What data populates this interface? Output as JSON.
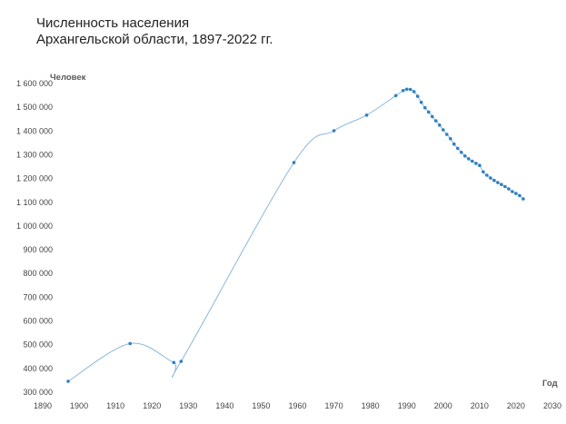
{
  "title": {
    "line1": "Численность населения",
    "line2": "Архангельской области, 1897-2022 гг."
  },
  "chart_data": {
    "type": "line",
    "title": "Численность населения Архангельской области, 1897-2022 гг.",
    "xlabel": "Год",
    "ylabel": "Человек",
    "xlim": [
      1890,
      2030
    ],
    "ylim": [
      300000,
      1600000
    ],
    "x_ticks": [
      1890,
      1900,
      1910,
      1920,
      1930,
      1940,
      1950,
      1960,
      1970,
      1980,
      1990,
      2000,
      2010,
      2020,
      2030
    ],
    "y_ticks": [
      300000,
      400000,
      500000,
      600000,
      700000,
      800000,
      900000,
      1000000,
      1100000,
      1200000,
      1300000,
      1400000,
      1500000,
      1600000
    ],
    "grid": false,
    "legend": "none",
    "line_color": "#8ab7da",
    "marker_color": "#2d7fc1",
    "series": [
      {
        "name": "Численность населения",
        "points": [
          [
            1897,
            346000
          ],
          [
            1914,
            505000
          ],
          [
            1926,
            425000
          ],
          [
            1928,
            430000
          ],
          [
            1959,
            1267000
          ],
          [
            1970,
            1401000
          ],
          [
            1979,
            1467000
          ],
          [
            1987,
            1549000
          ],
          [
            1989,
            1570000
          ],
          [
            1990,
            1576000
          ],
          [
            1991,
            1575000
          ],
          [
            1992,
            1566000
          ],
          [
            1993,
            1546000
          ],
          [
            1994,
            1521000
          ],
          [
            1995,
            1498000
          ],
          [
            1996,
            1480000
          ],
          [
            1997,
            1461000
          ],
          [
            1998,
            1443000
          ],
          [
            1999,
            1425000
          ],
          [
            2000,
            1405000
          ],
          [
            2001,
            1386000
          ],
          [
            2002,
            1368000
          ],
          [
            2003,
            1345000
          ],
          [
            2004,
            1327000
          ],
          [
            2005,
            1310000
          ],
          [
            2006,
            1295000
          ],
          [
            2007,
            1283000
          ],
          [
            2008,
            1273000
          ],
          [
            2009,
            1264000
          ],
          [
            2010,
            1255000
          ],
          [
            2011,
            1228000
          ],
          [
            2012,
            1214000
          ],
          [
            2013,
            1202000
          ],
          [
            2014,
            1192000
          ],
          [
            2015,
            1183000
          ],
          [
            2016,
            1175000
          ],
          [
            2017,
            1166000
          ],
          [
            2018,
            1156000
          ],
          [
            2019,
            1145000
          ],
          [
            2020,
            1137000
          ],
          [
            2021,
            1128000
          ],
          [
            2022,
            1114000
          ]
        ]
      }
    ]
  }
}
